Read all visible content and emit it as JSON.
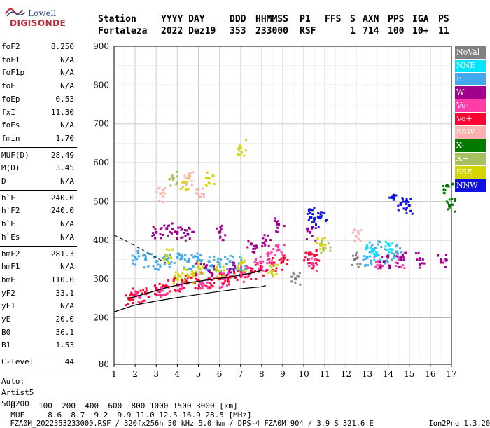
{
  "logo": {
    "line1": "Lowell",
    "line2": "DIGISONDE"
  },
  "header": {
    "columns": [
      {
        "label": "Station",
        "value": "Fortaleza"
      },
      {
        "label": "YYYY DAY",
        "value": "2022 Dez19"
      },
      {
        "label": "DDD",
        "value": "353"
      },
      {
        "label": "HHMMSS",
        "value": "233000"
      },
      {
        "label": "P1",
        "value": "RSF"
      },
      {
        "label": "FFS",
        "value": ""
      },
      {
        "label": "S",
        "value": "1"
      },
      {
        "label": "AXN",
        "value": "714"
      },
      {
        "label": "PPS",
        "value": "100"
      },
      {
        "label": "IGA",
        "value": "10+"
      },
      {
        "label": "PS",
        "value": "11"
      }
    ]
  },
  "params": {
    "group1": [
      {
        "k": "foF2",
        "v": "8.250"
      },
      {
        "k": "foF1",
        "v": "N/A"
      },
      {
        "k": "foF1p",
        "v": "N/A"
      },
      {
        "k": "foE",
        "v": "N/A"
      },
      {
        "k": "foEp",
        "v": "0.53"
      },
      {
        "k": "fxI",
        "v": "11.30"
      },
      {
        "k": "foEs",
        "v": "N/A"
      },
      {
        "k": "fmin",
        "v": "1.70"
      }
    ],
    "group2": [
      {
        "k": "MUF(D)",
        "v": "28.49"
      },
      {
        "k": "M(D)",
        "v": "3.45"
      },
      {
        "k": "D",
        "v": "N/A"
      }
    ],
    "group3": [
      {
        "k": "h`F",
        "v": "240.0"
      },
      {
        "k": "h`F2",
        "v": "240.0"
      },
      {
        "k": "h`E",
        "v": "N/A"
      },
      {
        "k": "h`Es",
        "v": "N/A"
      }
    ],
    "group4": [
      {
        "k": "hmF2",
        "v": "281.3"
      },
      {
        "k": "hmF1",
        "v": "N/A"
      },
      {
        "k": "hmE",
        "v": "110.0"
      },
      {
        "k": "yF2",
        "v": "33.1"
      },
      {
        "k": "yF1",
        "v": "N/A"
      },
      {
        "k": "yE",
        "v": "20.0"
      },
      {
        "k": "B0",
        "v": "36.1"
      },
      {
        "k": "B1",
        "v": "1.53"
      }
    ],
    "group5": [
      {
        "k": "C-level",
        "v": "44"
      }
    ],
    "auto_label": "Auto:",
    "auto_name": "Artist5",
    "auto_code": "500200"
  },
  "legend": [
    {
      "label": "NoVal",
      "color": "#808080"
    },
    {
      "label": "NNE",
      "color": "#00e5ff"
    },
    {
      "label": "E",
      "color": "#3fa8ef"
    },
    {
      "label": "W",
      "color": "#a0008c"
    },
    {
      "label": "Vo-",
      "color": "#ff3ca8"
    },
    {
      "label": "Vo+",
      "color": "#ff0033"
    },
    {
      "label": "SSW",
      "color": "#ffb0b0"
    },
    {
      "label": "X-",
      "color": "#007a00"
    },
    {
      "label": "X+",
      "color": "#a8c060"
    },
    {
      "label": "SSE",
      "color": "#d4d400"
    },
    {
      "label": "NNW",
      "color": "#1010e0"
    }
  ],
  "chart_data": {
    "type": "scatter",
    "title": "",
    "xlabel": "",
    "ylabel": "",
    "xlim": [
      1,
      17
    ],
    "ylim": [
      80,
      900
    ],
    "xticks": [
      1,
      2,
      3,
      4,
      5,
      6,
      7,
      8,
      9,
      10,
      11,
      12,
      13,
      14,
      15,
      16,
      17
    ],
    "yticks": [
      80,
      200,
      300,
      400,
      500,
      600,
      700,
      800,
      900
    ],
    "grid": true,
    "series": [
      {
        "name": "Vo+",
        "color": "#ff0033",
        "points": [
          [
            1.7,
            250
          ],
          [
            2.0,
            260
          ],
          [
            2.5,
            262
          ],
          [
            3.0,
            275
          ],
          [
            3.5,
            280
          ],
          [
            4.0,
            285
          ],
          [
            4.5,
            290
          ],
          [
            5.0,
            295
          ],
          [
            5.5,
            300
          ],
          [
            6.0,
            300
          ],
          [
            6.5,
            305
          ],
          [
            7.0,
            310
          ],
          [
            7.5,
            320
          ],
          [
            8.0,
            330
          ],
          [
            8.5,
            340
          ],
          [
            9.0,
            345
          ],
          [
            10.2,
            350
          ],
          [
            10.5,
            360
          ]
        ]
      },
      {
        "name": "Vo-",
        "color": "#ff3ca8",
        "points": [
          [
            2.2,
            255
          ],
          [
            3.2,
            270
          ],
          [
            4.2,
            285
          ],
          [
            5.2,
            290
          ],
          [
            6.2,
            300
          ],
          [
            7.2,
            315
          ],
          [
            7.8,
            340
          ],
          [
            8.3,
            360
          ],
          [
            8.8,
            375
          ],
          [
            10.4,
            340
          ],
          [
            13.5,
            345
          ],
          [
            14.5,
            350
          ]
        ]
      },
      {
        "name": "E",
        "color": "#3fa8ef",
        "points": [
          [
            2.0,
            355
          ],
          [
            2.5,
            350
          ],
          [
            3.0,
            345
          ],
          [
            3.5,
            350
          ],
          [
            4.0,
            355
          ],
          [
            4.5,
            345
          ],
          [
            5.0,
            350
          ],
          [
            5.5,
            345
          ],
          [
            6.0,
            340
          ],
          [
            6.5,
            345
          ],
          [
            7.0,
            340
          ],
          [
            13.0,
            355
          ],
          [
            13.4,
            380
          ],
          [
            14.0,
            360
          ],
          [
            14.4,
            370
          ]
        ]
      },
      {
        "name": "W",
        "color": "#a0008c",
        "points": [
          [
            3.0,
            420
          ],
          [
            3.5,
            430
          ],
          [
            4.0,
            420
          ],
          [
            4.5,
            415
          ],
          [
            5.0,
            330
          ],
          [
            5.5,
            320
          ],
          [
            6.0,
            420
          ],
          [
            6.5,
            325
          ],
          [
            7.5,
            390
          ],
          [
            8.2,
            400
          ],
          [
            8.8,
            440
          ],
          [
            10.3,
            420
          ],
          [
            13.8,
            345
          ],
          [
            14.6,
            350
          ],
          [
            15.5,
            350
          ],
          [
            16.5,
            345
          ]
        ]
      },
      {
        "name": "NNW",
        "color": "#1010e0",
        "points": [
          [
            10.3,
            470
          ],
          [
            10.5,
            455
          ],
          [
            10.8,
            460
          ],
          [
            14.2,
            510
          ],
          [
            14.6,
            495
          ],
          [
            15.0,
            490
          ]
        ]
      },
      {
        "name": "SSE",
        "color": "#d4d400",
        "points": [
          [
            3.5,
            360
          ],
          [
            4.0,
            300
          ],
          [
            4.5,
            310
          ],
          [
            5.0,
            330
          ],
          [
            6.0,
            320
          ],
          [
            7.0,
            340
          ],
          [
            8.5,
            320
          ],
          [
            10.8,
            390
          ],
          [
            4.3,
            550
          ],
          [
            5.5,
            560
          ],
          [
            7.0,
            640
          ]
        ]
      },
      {
        "name": "SSW",
        "color": "#ffb0b0",
        "points": [
          [
            3.2,
            520
          ],
          [
            4.5,
            560
          ],
          [
            5.0,
            530
          ],
          [
            12.5,
            410
          ]
        ]
      },
      {
        "name": "NNE",
        "color": "#00e5ff",
        "points": [
          [
            13.0,
            380
          ],
          [
            13.4,
            360
          ],
          [
            14.0,
            390
          ]
        ]
      },
      {
        "name": "X+",
        "color": "#a8c060",
        "points": [
          [
            3.8,
            560
          ],
          [
            11.0,
            380
          ]
        ]
      },
      {
        "name": "X-",
        "color": "#007a00",
        "points": [
          [
            16.8,
            540
          ],
          [
            16.9,
            490
          ]
        ]
      },
      {
        "name": "NoVal",
        "color": "#808080",
        "points": [
          [
            9.6,
            300
          ],
          [
            12.4,
            350
          ]
        ]
      }
    ],
    "profile_solid": [
      [
        1.0,
        215
      ],
      [
        2.0,
        233
      ],
      [
        3.0,
        243
      ],
      [
        4.0,
        252
      ],
      [
        5.0,
        260
      ],
      [
        6.0,
        268
      ],
      [
        7.0,
        275
      ],
      [
        8.0,
        280
      ],
      [
        8.2,
        283
      ]
    ],
    "profile_dashed": [
      [
        1.0,
        413
      ],
      [
        1.5,
        400
      ],
      [
        2.0,
        385
      ],
      [
        2.5,
        370
      ],
      [
        3.0,
        355
      ],
      [
        3.5,
        340
      ]
    ],
    "trace_curve": [
      [
        1.7,
        250
      ],
      [
        2.5,
        262
      ],
      [
        3.5,
        278
      ],
      [
        4.5,
        290
      ],
      [
        5.5,
        298
      ],
      [
        6.5,
        305
      ],
      [
        7.5,
        315
      ],
      [
        8.0,
        322
      ]
    ]
  },
  "footer": {
    "row_d_label": "D",
    "row_d_values": [
      "100",
      "200",
      "400",
      "600",
      "800",
      "1000",
      "1500",
      "3000"
    ],
    "row_d_unit": "[km]",
    "row_muf_label": "MUF",
    "row_muf_values": [
      "8.6",
      "8.7",
      "9.2",
      "9.9",
      "11.0",
      "12.5",
      "16.9",
      "28.5"
    ],
    "row_muf_unit": "[MHz]",
    "info": "FZA0M_2022353233000.RSF / 320fx256h 50 kHz 5.0 km / DPS-4 FZA0M 904 / 3.9 S 321.6 E",
    "version": "Ion2Png 1.3.20"
  }
}
